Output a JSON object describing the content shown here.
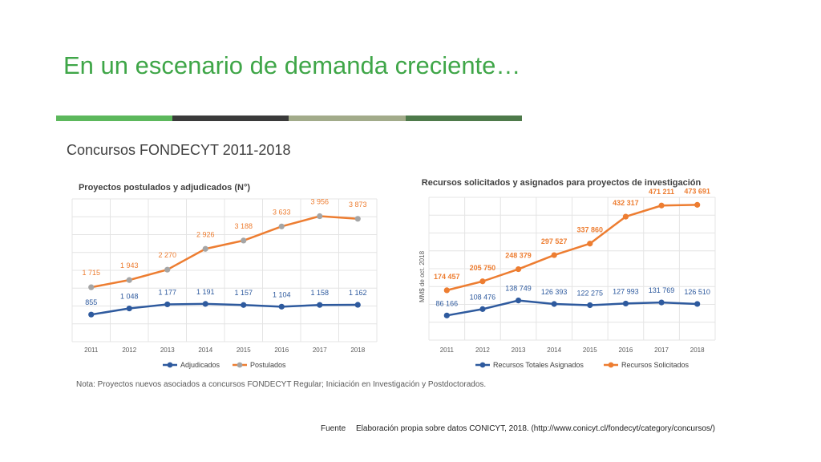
{
  "slide": {
    "title": "En un escenario de demanda creciente…",
    "subtitle": "Concursos FONDECYT 2011-2018",
    "divider_colors": [
      "#5cb85c",
      "#3a3a3a",
      "#a2ab8a",
      "#4e7a4a"
    ],
    "note": "Nota: Proyectos nuevos asociados a concursos FONDECYT Regular; Iniciación en Investigación y Postdoctorados.",
    "source_label": "Fuente",
    "source_text": "Elaboración propia sobre datos CONICYT, 2018. (http://www.conicyt.cl/fondecyt/category/concursos/)"
  },
  "chart_data": [
    {
      "type": "line",
      "title": "Proyectos postulados y adjudicados (N°)",
      "xlabel": "",
      "ylabel": "",
      "categories": [
        "2011",
        "2012",
        "2013",
        "2014",
        "2015",
        "2016",
        "2017",
        "2018"
      ],
      "ylim": [
        0,
        4500
      ],
      "grid": true,
      "legend_position": "bottom",
      "series": [
        {
          "name": "Adjudicados",
          "color": "#2e5a9e",
          "values": [
            855,
            1048,
            1177,
            1191,
            1157,
            1104,
            1158,
            1162
          ],
          "labels": [
            "855",
            "1 048",
            "1 177",
            "1 191",
            "1 157",
            "1 104",
            "1 158",
            "1 162"
          ]
        },
        {
          "name": "Postulados",
          "color": "#ed7d31",
          "marker_color": "#a5a5a5",
          "values": [
            1715,
            1943,
            2270,
            2926,
            3188,
            3633,
            3956,
            3873
          ],
          "labels": [
            "1 715",
            "1 943",
            "2 270",
            "2 926",
            "3 188",
            "3 633",
            "3 956",
            "3 873"
          ]
        }
      ]
    },
    {
      "type": "line",
      "title": "Recursos solicitados y asignados para proyectos de investigación",
      "xlabel": "",
      "ylabel": "MM$ de oct. 2018",
      "categories": [
        "2011",
        "2012",
        "2013",
        "2014",
        "2015",
        "2016",
        "2017",
        "2018"
      ],
      "ylim": [
        0,
        500000
      ],
      "grid": true,
      "legend_position": "bottom",
      "series": [
        {
          "name": "Recursos Totales Asignados",
          "color": "#2e5a9e",
          "values": [
            86166,
            108476,
            138749,
            126393,
            122275,
            127993,
            131769,
            126510
          ],
          "labels": [
            "86 166",
            "108 476",
            "138 749",
            "126 393",
            "122 275",
            "127 993",
            "131 769",
            "126 510"
          ]
        },
        {
          "name": "Recursos Solicitados",
          "color": "#ed7d31",
          "values": [
            174457,
            205750,
            248379,
            297527,
            337860,
            432317,
            471211,
            473691
          ],
          "labels": [
            "174 457",
            "205 750",
            "248 379",
            "297 527",
            "337 860",
            "432 317",
            "471 211",
            "473 691"
          ]
        }
      ]
    }
  ]
}
